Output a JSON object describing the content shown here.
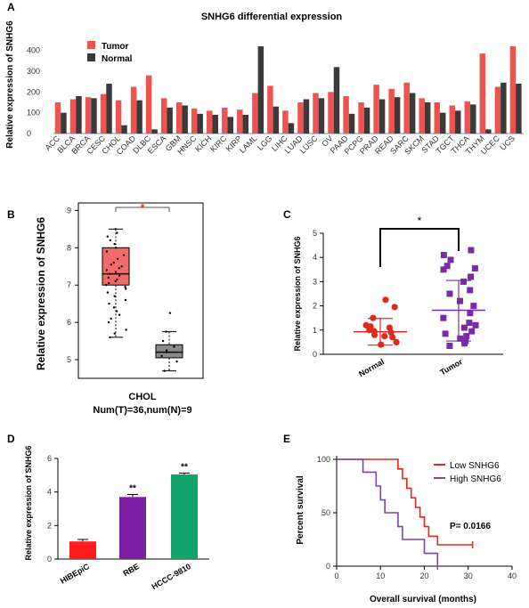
{
  "panels": {
    "A": "A",
    "B": "B",
    "C": "C",
    "D": "D",
    "E": "E"
  },
  "chart_data": [
    {
      "panel": "A",
      "type": "bar",
      "title": "SNHG6 differential expression",
      "ylabel": "Relative expression of SNHG6",
      "xlabel": "",
      "ylim": [
        0,
        450
      ],
      "yticks": [
        0,
        100,
        200,
        300,
        400
      ],
      "legend_position": "top-left",
      "colors": {
        "Tumor": "#ef5350",
        "Normal": "#3a3a3a"
      },
      "categories": [
        "ACC",
        "BLCA",
        "BRCA",
        "CESC",
        "CHOL",
        "COAD",
        "DLBC",
        "ESCA",
        "GBM",
        "HNSC",
        "KICH",
        "KIRC",
        "KIRP",
        "LAML",
        "LGG",
        "LIHC",
        "LUAD",
        "LUSC",
        "OV",
        "PAAD",
        "PCPG",
        "PRAD",
        "READ",
        "SARC",
        "SKCM",
        "STAD",
        "TGCT",
        "THCA",
        "THYM",
        "UCEC",
        "UCS"
      ],
      "series": [
        {
          "name": "Tumor",
          "values": [
            150,
            165,
            175,
            190,
            160,
            225,
            280,
            170,
            150,
            120,
            110,
            125,
            115,
            195,
            230,
            110,
            150,
            195,
            200,
            180,
            150,
            235,
            215,
            245,
            170,
            150,
            135,
            155,
            385,
            225,
            420
          ]
        },
        {
          "name": "Normal",
          "values": [
            100,
            180,
            170,
            240,
            40,
            160,
            20,
            125,
            135,
            95,
            90,
            80,
            90,
            420,
            130,
            50,
            165,
            170,
            320,
            95,
            125,
            165,
            175,
            195,
            150,
            100,
            110,
            140,
            20,
            245,
            240
          ]
        }
      ]
    },
    {
      "panel": "B",
      "type": "box",
      "ylabel": "Relative expression of SNHG6",
      "xlabel": "CHOL",
      "subtitle": "Num(T)=36,num(N)=9",
      "ylim": [
        4.5,
        9.2
      ],
      "yticks": [
        5,
        6,
        7,
        8,
        9
      ],
      "significance": "*",
      "colors": {
        "tumor": "#f26b6b",
        "normal": "#8a8a8a"
      },
      "boxes": [
        {
          "name": "Tumor",
          "min": 5.6,
          "q1": 7.0,
          "median": 7.3,
          "q3": 8.0,
          "max": 8.5
        },
        {
          "name": "Normal",
          "min": 4.7,
          "q1": 5.05,
          "median": 5.2,
          "q3": 5.4,
          "max": 5.75
        }
      ],
      "points_tumor": [
        8.5,
        8.4,
        8.3,
        8.2,
        8.1,
        8.0,
        7.9,
        7.8,
        7.7,
        7.6,
        7.55,
        7.5,
        7.45,
        7.4,
        7.35,
        7.3,
        7.25,
        7.2,
        7.15,
        7.1,
        7.05,
        7.0,
        6.95,
        6.9,
        6.8,
        6.7,
        6.6,
        6.5,
        6.4,
        6.3,
        6.2,
        6.1,
        6.0,
        5.8,
        5.7,
        5.6
      ],
      "points_normal": [
        6.25,
        5.75,
        5.5,
        5.35,
        5.25,
        5.2,
        5.1,
        4.95,
        4.7
      ]
    },
    {
      "panel": "C",
      "type": "scatter",
      "ylabel": "Relative expression of SNHG6",
      "xlabel": "",
      "categories": [
        "Normal",
        "Tumor"
      ],
      "ylim": [
        0,
        5
      ],
      "yticks": [
        0,
        1,
        2,
        3,
        4,
        5
      ],
      "significance": "*",
      "colors": {
        "Normal": "#e0281f",
        "Tumor": "#7a2aa6"
      },
      "groups": [
        {
          "name": "Normal",
          "mean": 0.93,
          "sd_low": 0.38,
          "sd_high": 1.48,
          "values": [
            2.25,
            1.95,
            1.5,
            1.2,
            1.15,
            1.1,
            1.0,
            0.95,
            0.9,
            0.8,
            0.75,
            0.7,
            0.5,
            0.4
          ]
        },
        {
          "name": "Tumor",
          "mean": 1.82,
          "sd_low": 0.55,
          "sd_high": 3.05,
          "values": [
            4.3,
            4.1,
            3.9,
            3.65,
            3.55,
            3.5,
            3.2,
            3.0,
            2.65,
            2.5,
            2.2,
            2.0,
            1.7,
            1.5,
            1.3,
            1.2,
            1.1,
            0.95,
            0.85,
            0.75,
            0.65,
            0.55,
            0.45,
            0.35
          ]
        }
      ]
    },
    {
      "panel": "D",
      "type": "bar",
      "ylabel": "Relative expression of SNHG6",
      "xlabel": "",
      "categories": [
        "HIBEpiC",
        "RBE",
        "HCCC-9810"
      ],
      "values": [
        1.05,
        3.7,
        5.05
      ],
      "errors": [
        0.12,
        0.15,
        0.08
      ],
      "significance": [
        "",
        "**",
        "**"
      ],
      "colors": [
        "#ff1c1c",
        "#7b1fa2",
        "#11a56b"
      ],
      "ylim": [
        0,
        6
      ],
      "yticks": [
        0,
        2,
        4,
        6
      ]
    },
    {
      "panel": "E",
      "type": "line",
      "ylabel": "Percent survival",
      "xlabel": "Overall survival (months)",
      "xlim": [
        0,
        40
      ],
      "ylim": [
        0,
        100
      ],
      "xticks": [
        0,
        10,
        20,
        30,
        40
      ],
      "yticks": [
        0,
        50,
        100
      ],
      "annotation": "P= 0.0166",
      "legend_position": "top-right",
      "series": [
        {
          "name": "Low SNHG6",
          "color": "#e0281f",
          "steps": [
            [
              0,
              100
            ],
            [
              14,
              100
            ],
            [
              14,
              91
            ],
            [
              15,
              91
            ],
            [
              15,
              82
            ],
            [
              16,
              82
            ],
            [
              16,
              73
            ],
            [
              17,
              73
            ],
            [
              17,
              64
            ],
            [
              18,
              64
            ],
            [
              18,
              55
            ],
            [
              19,
              55
            ],
            [
              19,
              46
            ],
            [
              20,
              46
            ],
            [
              20,
              37
            ],
            [
              21,
              37
            ],
            [
              21,
              28
            ],
            [
              23,
              28
            ],
            [
              23,
              20
            ],
            [
              31,
              20
            ]
          ]
        },
        {
          "name": "High SNHG6",
          "color": "#7b45b0",
          "steps": [
            [
              0,
              100
            ],
            [
              6,
              100
            ],
            [
              6,
              88
            ],
            [
              9,
              88
            ],
            [
              9,
              75
            ],
            [
              10,
              75
            ],
            [
              10,
              62
            ],
            [
              11,
              62
            ],
            [
              11,
              50
            ],
            [
              14,
              50
            ],
            [
              14,
              37
            ],
            [
              15,
              37
            ],
            [
              15,
              25
            ],
            [
              20,
              25
            ],
            [
              20,
              12
            ],
            [
              23,
              12
            ],
            [
              23,
              0
            ]
          ]
        }
      ]
    }
  ]
}
